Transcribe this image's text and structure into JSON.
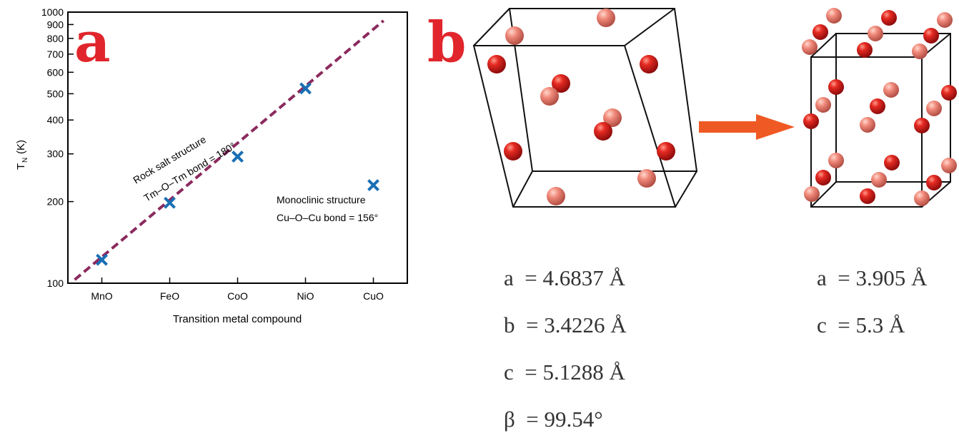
{
  "panel_a_label": "a",
  "panel_b_label": "b",
  "chart_data": {
    "type": "scatter",
    "ylabel": "T_N (K)",
    "ylabel_main": "T",
    "ylabel_sub": "N",
    "ylabel_unit": "(K)",
    "xlabel": "Transition metal compound",
    "y_scale": "log",
    "ylim": [
      100,
      1000
    ],
    "y_ticks": [
      100,
      200,
      300,
      400,
      500,
      600,
      700,
      800,
      900,
      1000
    ],
    "categories": [
      "MnO",
      "FeO",
      "CoO",
      "NiO",
      "CuO"
    ],
    "points": [
      {
        "x": "MnO",
        "y": 122
      },
      {
        "x": "FeO",
        "y": 198
      },
      {
        "x": "CoO",
        "y": 293
      },
      {
        "x": "NiO",
        "y": 523
      },
      {
        "x": "CuO",
        "y": 230
      }
    ],
    "trend_line": {
      "from": {
        "x": 0.6,
        "y": 103
      },
      "to": {
        "x": 5.15,
        "y": 930
      },
      "style": "dashed"
    },
    "annotations": [
      {
        "id": "rock-salt-1",
        "text": "Rock salt structure"
      },
      {
        "id": "rock-salt-2",
        "text": "Tm–O–Tm bond = 180°"
      },
      {
        "id": "mono-1",
        "text": "Monoclinic structure"
      },
      {
        "id": "mono-2",
        "text": "Cu–O–Cu bond = 156°"
      }
    ],
    "marker_color": "#1a6fb5",
    "line_color": "#8b2a5e",
    "grid": false
  },
  "structure_left_params": [
    "a  = 4.6837 Å",
    "b  = 3.4226 Å",
    "c  = 5.1288 Å",
    "β  = 99.54°"
  ],
  "structure_right_params": [
    "a  = 3.905 Å",
    "c  = 5.3 Å"
  ],
  "colors": {
    "letter": "#e0262c",
    "arrow": "#ef5a24",
    "atom_red": "#d81a1a",
    "atom_pink": "#f07f70"
  }
}
